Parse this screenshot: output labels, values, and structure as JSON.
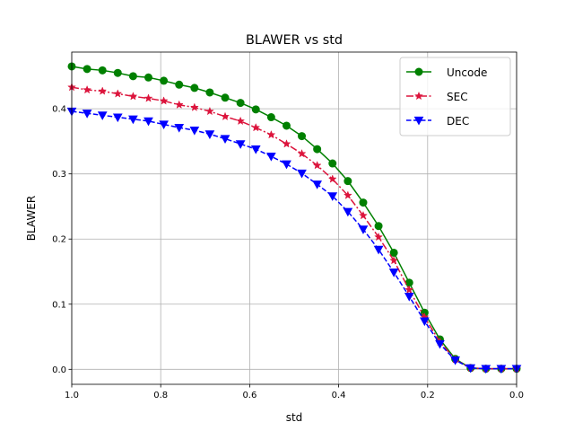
{
  "chart_data": {
    "type": "line",
    "title": "BLAWER vs std",
    "xlabel": "std",
    "ylabel": "BLAWER",
    "xlim": [
      1.0,
      0.0
    ],
    "ylim": [
      -0.023,
      0.487
    ],
    "x_ticks": [
      "1.0",
      "0.8",
      "0.6",
      "0.4",
      "0.2",
      "0.0"
    ],
    "y_ticks": [
      "0.0",
      "0.1",
      "0.2",
      "0.3",
      "0.4"
    ],
    "grid": true,
    "legend_position": "top-right",
    "x": [
      1.0,
      0.9655,
      0.931,
      0.8966,
      0.8621,
      0.8276,
      0.7931,
      0.7586,
      0.7241,
      0.6897,
      0.6552,
      0.6207,
      0.5862,
      0.5517,
      0.5172,
      0.4828,
      0.4483,
      0.4138,
      0.3793,
      0.3448,
      0.3103,
      0.2759,
      0.2414,
      0.2069,
      0.1724,
      0.1379,
      0.1034,
      0.069,
      0.0345,
      0.0
    ],
    "series": [
      {
        "name": "Uncode",
        "color": "#008000",
        "linestyle": "solid",
        "marker": "circle",
        "values": [
          0.465,
          0.461,
          0.459,
          0.455,
          0.45,
          0.448,
          0.443,
          0.437,
          0.432,
          0.425,
          0.417,
          0.409,
          0.399,
          0.387,
          0.374,
          0.358,
          0.338,
          0.316,
          0.289,
          0.256,
          0.22,
          0.179,
          0.133,
          0.087,
          0.046,
          0.016,
          0.002,
          0.001,
          0.001,
          0.001
        ]
      },
      {
        "name": "SEC",
        "color": "#dc143c",
        "linestyle": "dashdot",
        "marker": "star",
        "values": [
          0.433,
          0.429,
          0.427,
          0.423,
          0.419,
          0.416,
          0.412,
          0.406,
          0.402,
          0.396,
          0.388,
          0.381,
          0.371,
          0.36,
          0.346,
          0.331,
          0.313,
          0.292,
          0.267,
          0.236,
          0.203,
          0.167,
          0.122,
          0.08,
          0.042,
          0.015,
          0.002,
          0.001,
          0.001,
          0.001
        ]
      },
      {
        "name": "DEC",
        "color": "#0000ff",
        "linestyle": "dashed",
        "marker": "triangle-down",
        "values": [
          0.396,
          0.393,
          0.39,
          0.387,
          0.384,
          0.381,
          0.376,
          0.371,
          0.367,
          0.361,
          0.354,
          0.346,
          0.338,
          0.327,
          0.315,
          0.301,
          0.284,
          0.266,
          0.242,
          0.215,
          0.184,
          0.149,
          0.112,
          0.074,
          0.039,
          0.014,
          0.002,
          0.001,
          0.001,
          0.001
        ]
      }
    ]
  }
}
